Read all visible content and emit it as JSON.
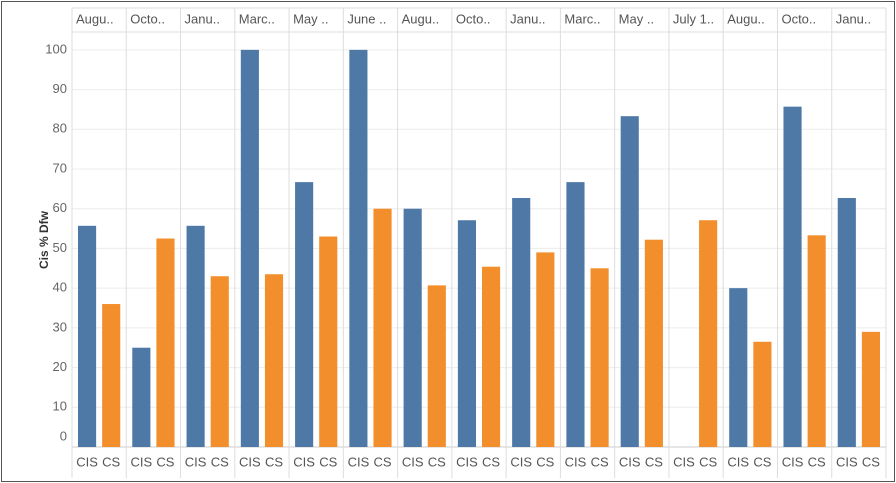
{
  "chart_data": {
    "type": "bar",
    "y_label": "Cis % Dfw",
    "categories": [
      "Augu..",
      "Octo..",
      "Janu..",
      "Marc..",
      "May ..",
      "June ..",
      "Augu..",
      "Octo..",
      "Janu..",
      "Marc..",
      "May ..",
      "July 1..",
      "Augu..",
      "Octo..",
      "Janu.."
    ],
    "series": [
      {
        "name": "CIS",
        "color": "#4e79a7",
        "values": [
          55.7,
          25,
          55.7,
          100,
          66.7,
          100,
          60,
          57.1,
          62.7,
          66.7,
          83.3,
          null,
          40,
          85.7,
          62.7
        ]
      },
      {
        "name": "CS",
        "color": "#f28e2b",
        "values": [
          36,
          52.5,
          43,
          43.5,
          53,
          60,
          40.7,
          45.4,
          49,
          45,
          52.2,
          57.1,
          26.5,
          53.3,
          29
        ]
      }
    ],
    "ylim": [
      0,
      104.5
    ],
    "yticks": [
      0,
      10,
      20,
      30,
      40,
      50,
      60,
      70,
      80,
      90,
      100
    ],
    "grid": true
  }
}
